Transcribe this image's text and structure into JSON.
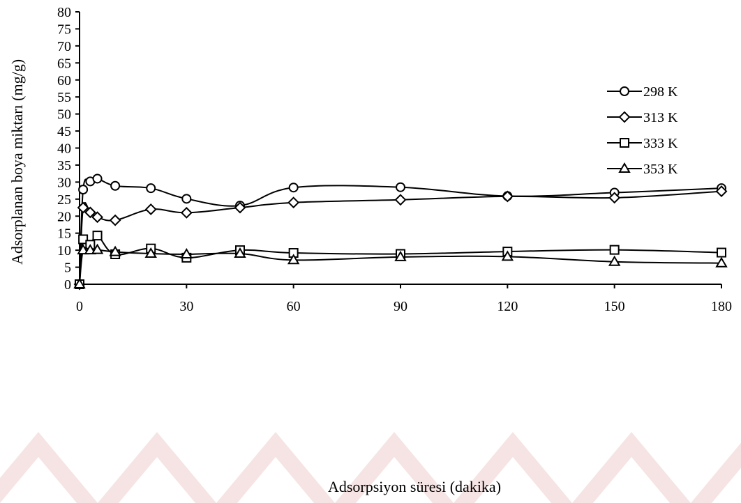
{
  "chart_data": {
    "type": "line",
    "xlabel": "Adsorpsiyon süresi (dakika)",
    "ylabel": "Adsorplanan boya miktarı (mg/g)",
    "xlim": [
      0,
      180
    ],
    "ylim": [
      0,
      80
    ],
    "xticks": [
      0,
      30,
      60,
      90,
      120,
      150,
      180
    ],
    "yticks": [
      0,
      5,
      10,
      15,
      20,
      25,
      30,
      35,
      40,
      45,
      50,
      55,
      60,
      65,
      70,
      75,
      80
    ],
    "grid": false,
    "legend_position": "top-right",
    "series": [
      {
        "name": "298 K",
        "marker": "circle",
        "x": [
          0,
          1,
          3,
          5,
          10,
          20,
          30,
          45,
          60,
          90,
          120,
          150,
          180
        ],
        "y": [
          0,
          27.8,
          30.2,
          31.0,
          28.9,
          28.2,
          25.1,
          23.1,
          28.4,
          28.5,
          25.9,
          26.9,
          28.2
        ]
      },
      {
        "name": "313 K",
        "marker": "diamond",
        "x": [
          0,
          1,
          3,
          5,
          10,
          20,
          30,
          45,
          60,
          90,
          120,
          150,
          180
        ],
        "y": [
          0,
          22.5,
          21.1,
          19.7,
          18.8,
          22.0,
          21.0,
          22.5,
          24.0,
          24.8,
          25.8,
          25.4,
          27.3
        ]
      },
      {
        "name": "333 K",
        "marker": "square",
        "x": [
          0,
          1,
          3,
          5,
          10,
          20,
          30,
          45,
          60,
          90,
          120,
          150,
          180
        ],
        "y": [
          0,
          13.2,
          11.6,
          14.3,
          8.8,
          10.5,
          7.8,
          10.0,
          9.2,
          8.9,
          9.6,
          10.1,
          9.3
        ]
      },
      {
        "name": "353 K",
        "marker": "triangle",
        "x": [
          0,
          1,
          3,
          5,
          10,
          20,
          30,
          45,
          60,
          90,
          120,
          150,
          180
        ],
        "y": [
          0,
          10.0,
          10.0,
          10.1,
          9.5,
          9.0,
          8.8,
          9.0,
          7.1,
          8.0,
          8.1,
          6.6,
          6.2
        ]
      }
    ]
  }
}
